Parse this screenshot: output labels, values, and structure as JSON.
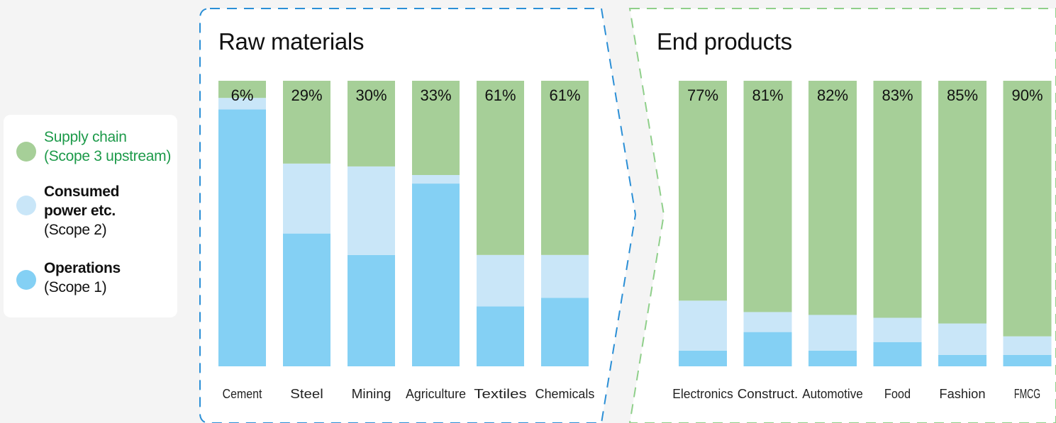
{
  "colors": {
    "supply_chain": "#a6cf98",
    "consumed_power": "#c9e6f8",
    "operations": "#84d0f4",
    "supply_chain_text": "#1d9a4a",
    "raw_border": "#2b8fd6",
    "end_border": "#8fcf8a"
  },
  "legend": {
    "items": [
      {
        "key": "supply_chain",
        "line1": "Supply chain",
        "line2": "(Scope 3 upstream)"
      },
      {
        "key": "consumed_power",
        "line1": "Consumed",
        "line1b": "power etc.",
        "line2": "(Scope 2)"
      },
      {
        "key": "operations",
        "line1": "Operations",
        "line2": "(Scope 1)"
      }
    ]
  },
  "chart_data": [
    {
      "type": "bar",
      "stacked": true,
      "title": "Raw materials",
      "categories": [
        "Cement",
        "Steel",
        "Mining",
        "Agriculture",
        "Textiles",
        "Chemicals"
      ],
      "labels": [
        "6%",
        "29%",
        "30%",
        "33%",
        "61%",
        "61%"
      ],
      "series": [
        {
          "name": "Operations (Scope 1)",
          "values": [
            90,
            46.5,
            39,
            64,
            21,
            24
          ]
        },
        {
          "name": "Consumed power etc. (Scope 2)",
          "values": [
            4,
            24.5,
            31,
            3,
            18,
            15
          ]
        },
        {
          "name": "Supply chain (Scope 3 upstream)",
          "values": [
            6,
            29,
            30,
            33,
            61,
            61
          ]
        }
      ],
      "ylim": [
        0,
        100
      ]
    },
    {
      "type": "bar",
      "stacked": true,
      "title": "End products",
      "categories": [
        "Electronics",
        "Construct.",
        "Automotive",
        "Food",
        "Fashion",
        "FMCG"
      ],
      "labels": [
        "77%",
        "81%",
        "82%",
        "83%",
        "85%",
        "90%"
      ],
      "series": [
        {
          "name": "Operations (Scope 1)",
          "values": [
            5.5,
            12,
            5.5,
            8.5,
            4,
            4
          ]
        },
        {
          "name": "Consumed power etc. (Scope 2)",
          "values": [
            17.5,
            7,
            12.5,
            8.5,
            11,
            6.5
          ]
        },
        {
          "name": "Supply chain (Scope 3 upstream)",
          "values": [
            77,
            81,
            82,
            83,
            85,
            89.5
          ]
        }
      ],
      "ylim": [
        0,
        100
      ]
    }
  ]
}
